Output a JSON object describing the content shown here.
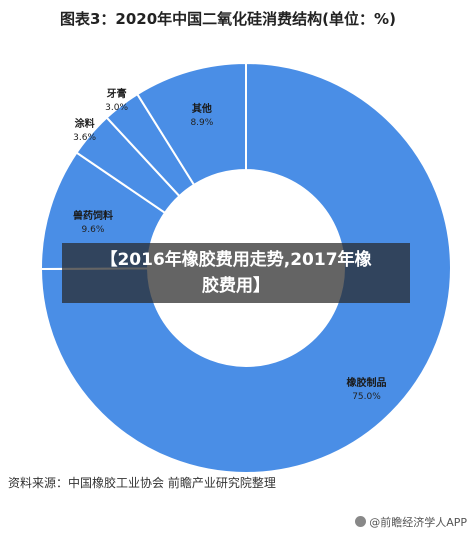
{
  "chart_data": {
    "type": "pie",
    "donut": true,
    "title": "图表3：2020年中国二氧化硅消费结构(单位：%)",
    "categories": [
      "橡胶制品",
      "兽药饲料",
      "涂料",
      "牙膏",
      "其他"
    ],
    "values": [
      75.0,
      9.6,
      3.6,
      3.0,
      8.9
    ],
    "value_labels": [
      "75.0%",
      "9.6%",
      "3.6%",
      "3.0%",
      "8.9%"
    ],
    "colors": [
      "#4a8ee6",
      "#4a8ee6",
      "#4a8ee6",
      "#4a8ee6",
      "#4a8ee6"
    ],
    "legend": "none"
  },
  "overlay": {
    "line1": "【2016年橡胶费用走势,2017年橡",
    "line2": "胶费用】"
  },
  "source": "资料来源：中国橡胶工业协会 前瞻产业研究院整理",
  "credit": "@前瞻经济学人APP"
}
